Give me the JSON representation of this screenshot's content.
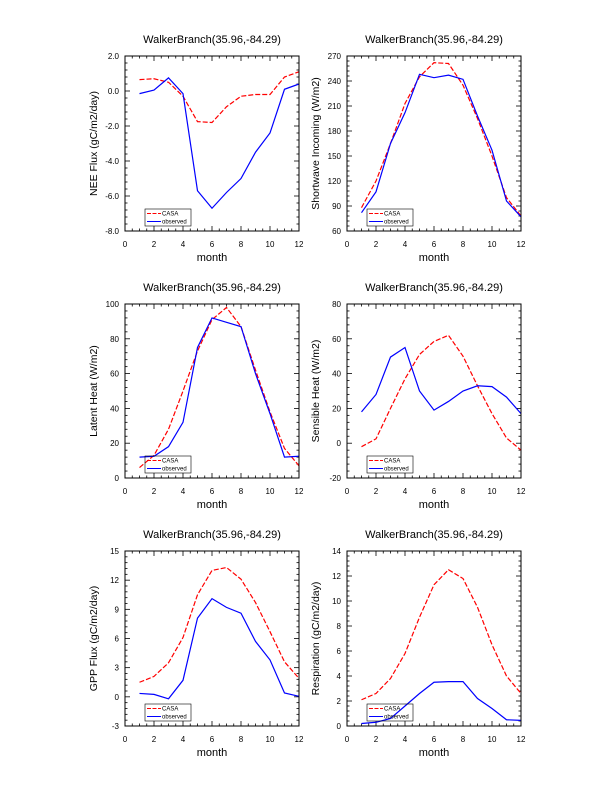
{
  "chart_data": [
    {
      "type": "line",
      "title": "WalkerBranch(35.96,-84.29)",
      "xlabel": "month",
      "ylabel": "NEE Flux (gC/m2/day)",
      "xlim": [
        0,
        12
      ],
      "xticks": [
        0,
        2,
        4,
        6,
        8,
        10,
        12
      ],
      "ylim": [
        -8,
        2
      ],
      "yticks": [
        "-8.0",
        "-6.0",
        "-4.0",
        "-2.0",
        "0.0",
        "2.0"
      ],
      "ytick_values": [
        -8,
        -6,
        -4,
        -2,
        0,
        2
      ],
      "x": [
        1,
        2,
        3,
        4,
        5,
        6,
        7,
        8,
        9,
        10,
        11,
        12
      ],
      "legend": "bottom-left",
      "series": [
        {
          "name": "CASA",
          "color": "#ff0000",
          "style": "dashed",
          "values": [
            0.65,
            0.7,
            0.5,
            -0.3,
            -1.75,
            -1.8,
            -0.9,
            -0.3,
            -0.2,
            -0.2,
            0.8,
            1.1
          ]
        },
        {
          "name": "observed",
          "color": "#0000ff",
          "style": "solid",
          "values": [
            -0.15,
            0.05,
            0.75,
            -0.15,
            -5.7,
            -6.7,
            -5.8,
            -5.0,
            -3.5,
            -2.4,
            0.1,
            0.4
          ]
        }
      ]
    },
    {
      "type": "line",
      "title": "WalkerBranch(35.96,-84.29)",
      "xlabel": "month",
      "ylabel": "Shortwave Incoming (W/m2)",
      "xlim": [
        0,
        12
      ],
      "xticks": [
        0,
        2,
        4,
        6,
        8,
        10,
        12
      ],
      "ylim": [
        60,
        270
      ],
      "yticks": [
        "60",
        "90",
        "120",
        "150",
        "180",
        "210",
        "240",
        "270"
      ],
      "ytick_values": [
        60,
        90,
        120,
        150,
        180,
        210,
        240,
        270
      ],
      "x": [
        1,
        2,
        3,
        4,
        5,
        6,
        7,
        8,
        9,
        10,
        11,
        12
      ],
      "legend": "bottom-left",
      "series": [
        {
          "name": "CASA",
          "color": "#ff0000",
          "style": "dashed",
          "values": [
            88,
            120,
            165,
            213,
            245,
            262,
            261,
            235,
            195,
            150,
            100,
            78
          ]
        },
        {
          "name": "observed",
          "color": "#0000ff",
          "style": "solid",
          "values": [
            82,
            107,
            165,
            202,
            248,
            244,
            247,
            242,
            198,
            157,
            96,
            77
          ]
        }
      ]
    },
    {
      "type": "line",
      "title": "WalkerBranch(35.96,-84.29)",
      "xlabel": "month",
      "ylabel": "Latent Heat (W/m2)",
      "xlim": [
        0,
        12
      ],
      "xticks": [
        0,
        2,
        4,
        6,
        8,
        10,
        12
      ],
      "ylim": [
        0,
        100
      ],
      "yticks": [
        "0",
        "20",
        "40",
        "60",
        "80",
        "100"
      ],
      "ytick_values": [
        0,
        20,
        40,
        60,
        80,
        100
      ],
      "x": [
        1,
        2,
        3,
        4,
        5,
        6,
        7,
        8,
        9,
        10,
        11,
        12
      ],
      "legend": "bottom-left",
      "series": [
        {
          "name": "CASA",
          "color": "#ff0000",
          "style": "dashed",
          "values": [
            6,
            13,
            28,
            50,
            73,
            91,
            98,
            87,
            62,
            38,
            17,
            7
          ]
        },
        {
          "name": "observed",
          "color": "#0000ff",
          "style": "solid",
          "values": [
            12,
            12.5,
            18,
            32,
            75,
            92,
            89.5,
            87,
            60,
            37,
            12,
            12.5
          ]
        }
      ]
    },
    {
      "type": "line",
      "title": "WalkerBranch(35.96,-84.29)",
      "xlabel": "month",
      "ylabel": "Sensible Heat (W/m2)",
      "xlim": [
        0,
        12
      ],
      "xticks": [
        0,
        2,
        4,
        6,
        8,
        10,
        12
      ],
      "ylim": [
        -20,
        80
      ],
      "yticks": [
        "-20",
        "0",
        "20",
        "40",
        "60",
        "80"
      ],
      "ytick_values": [
        -20,
        0,
        20,
        40,
        60,
        80
      ],
      "x": [
        1,
        2,
        3,
        4,
        5,
        6,
        7,
        8,
        9,
        10,
        11,
        12
      ],
      "legend": "bottom-left",
      "series": [
        {
          "name": "CASA",
          "color": "#ff0000",
          "style": "dashed",
          "values": [
            -2,
            2.5,
            20,
            37,
            51,
            58.5,
            62,
            50,
            33,
            17,
            3,
            -4
          ]
        },
        {
          "name": "observed",
          "color": "#0000ff",
          "style": "solid",
          "values": [
            18,
            28,
            49.5,
            55,
            30,
            19,
            24,
            30,
            33,
            32.5,
            26.5,
            17
          ]
        }
      ]
    },
    {
      "type": "line",
      "title": "WalkerBranch(35.96,-84.29)",
      "xlabel": "month",
      "ylabel": "GPP Flux (gC/m2/day)",
      "xlim": [
        0,
        12
      ],
      "xticks": [
        0,
        2,
        4,
        6,
        8,
        10,
        12
      ],
      "ylim": [
        -3,
        15
      ],
      "yticks": [
        "-3",
        "0",
        "3",
        "6",
        "9",
        "12",
        "15"
      ],
      "ytick_values": [
        -3,
        0,
        3,
        6,
        9,
        12,
        15
      ],
      "x": [
        1,
        2,
        3,
        4,
        5,
        6,
        7,
        8,
        9,
        10,
        11,
        12
      ],
      "legend": "bottom-left",
      "series": [
        {
          "name": "CASA",
          "color": "#ff0000",
          "style": "dashed",
          "values": [
            1.5,
            2.1,
            3.5,
            6.1,
            10.5,
            13.0,
            13.3,
            12.1,
            9.7,
            6.7,
            3.6,
            1.9
          ]
        },
        {
          "name": "observed",
          "color": "#0000ff",
          "style": "solid",
          "values": [
            0.35,
            0.25,
            -0.2,
            1.7,
            8.1,
            10.1,
            9.2,
            8.6,
            5.7,
            3.8,
            0.4,
            0.05
          ]
        }
      ]
    },
    {
      "type": "line",
      "title": "WalkerBranch(35.96,-84.29)",
      "xlabel": "month",
      "ylabel": "Respiration (gC/m2/day)",
      "xlim": [
        0,
        12
      ],
      "xticks": [
        0,
        2,
        4,
        6,
        8,
        10,
        12
      ],
      "ylim": [
        0,
        14
      ],
      "yticks": [
        "0",
        "2",
        "4",
        "6",
        "8",
        "10",
        "12",
        "14"
      ],
      "ytick_values": [
        0,
        2,
        4,
        6,
        8,
        10,
        12,
        14
      ],
      "x": [
        1,
        2,
        3,
        4,
        5,
        6,
        7,
        8,
        9,
        10,
        11,
        12
      ],
      "legend": "bottom-left",
      "series": [
        {
          "name": "CASA",
          "color": "#ff0000",
          "style": "dashed",
          "values": [
            2.1,
            2.6,
            3.8,
            5.8,
            8.7,
            11.3,
            12.5,
            11.8,
            9.5,
            6.5,
            4.0,
            2.6
          ]
        },
        {
          "name": "observed",
          "color": "#0000ff",
          "style": "solid",
          "values": [
            0.2,
            0.3,
            0.6,
            1.6,
            2.6,
            3.5,
            3.55,
            3.55,
            2.2,
            1.4,
            0.5,
            0.45
          ]
        }
      ]
    }
  ]
}
